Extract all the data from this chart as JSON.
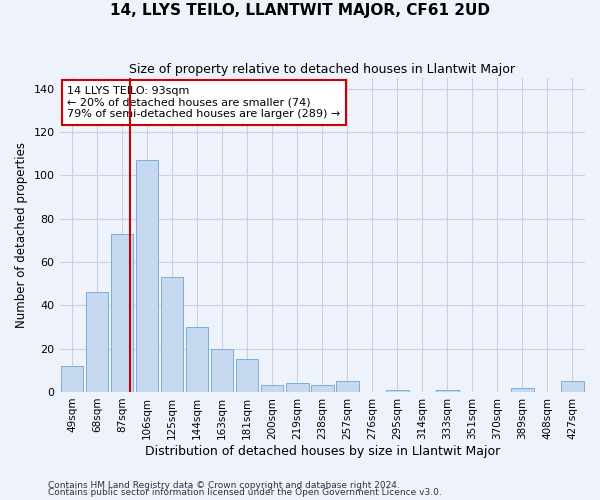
{
  "title": "14, LLYS TEILO, LLANTWIT MAJOR, CF61 2UD",
  "subtitle": "Size of property relative to detached houses in Llantwit Major",
  "xlabel": "Distribution of detached houses by size in Llantwit Major",
  "ylabel": "Number of detached properties",
  "footnote1": "Contains HM Land Registry data © Crown copyright and database right 2024.",
  "footnote2": "Contains public sector information licensed under the Open Government Licence v3.0.",
  "bin_labels": [
    "49sqm",
    "68sqm",
    "87sqm",
    "106sqm",
    "125sqm",
    "144sqm",
    "163sqm",
    "181sqm",
    "200sqm",
    "219sqm",
    "238sqm",
    "257sqm",
    "276sqm",
    "295sqm",
    "314sqm",
    "333sqm",
    "351sqm",
    "370sqm",
    "389sqm",
    "408sqm",
    "427sqm"
  ],
  "bar_values": [
    12,
    46,
    73,
    107,
    53,
    30,
    20,
    15,
    3,
    4,
    3,
    5,
    0,
    1,
    0,
    1,
    0,
    0,
    2,
    0,
    5
  ],
  "bar_color": "#c5d8f0",
  "bar_edgecolor": "#7aafd4",
  "vline_color": "#cc0000",
  "vline_x": 2.32,
  "annotation_text": "14 LLYS TEILO: 93sqm\n← 20% of detached houses are smaller (74)\n79% of semi-detached houses are larger (289) →",
  "annotation_box_facecolor": "#ffffff",
  "annotation_box_edgecolor": "#cc0000",
  "background_color": "#eef2fb",
  "grid_color": "#c8d0e8",
  "ylim": [
    0,
    145
  ],
  "yticks": [
    0,
    20,
    40,
    60,
    80,
    100,
    120,
    140
  ],
  "title_fontsize": 11,
  "subtitle_fontsize": 9,
  "ylabel_fontsize": 8.5,
  "xlabel_fontsize": 9,
  "tick_fontsize": 8,
  "xtick_fontsize": 7.5,
  "annotation_fontsize": 8
}
